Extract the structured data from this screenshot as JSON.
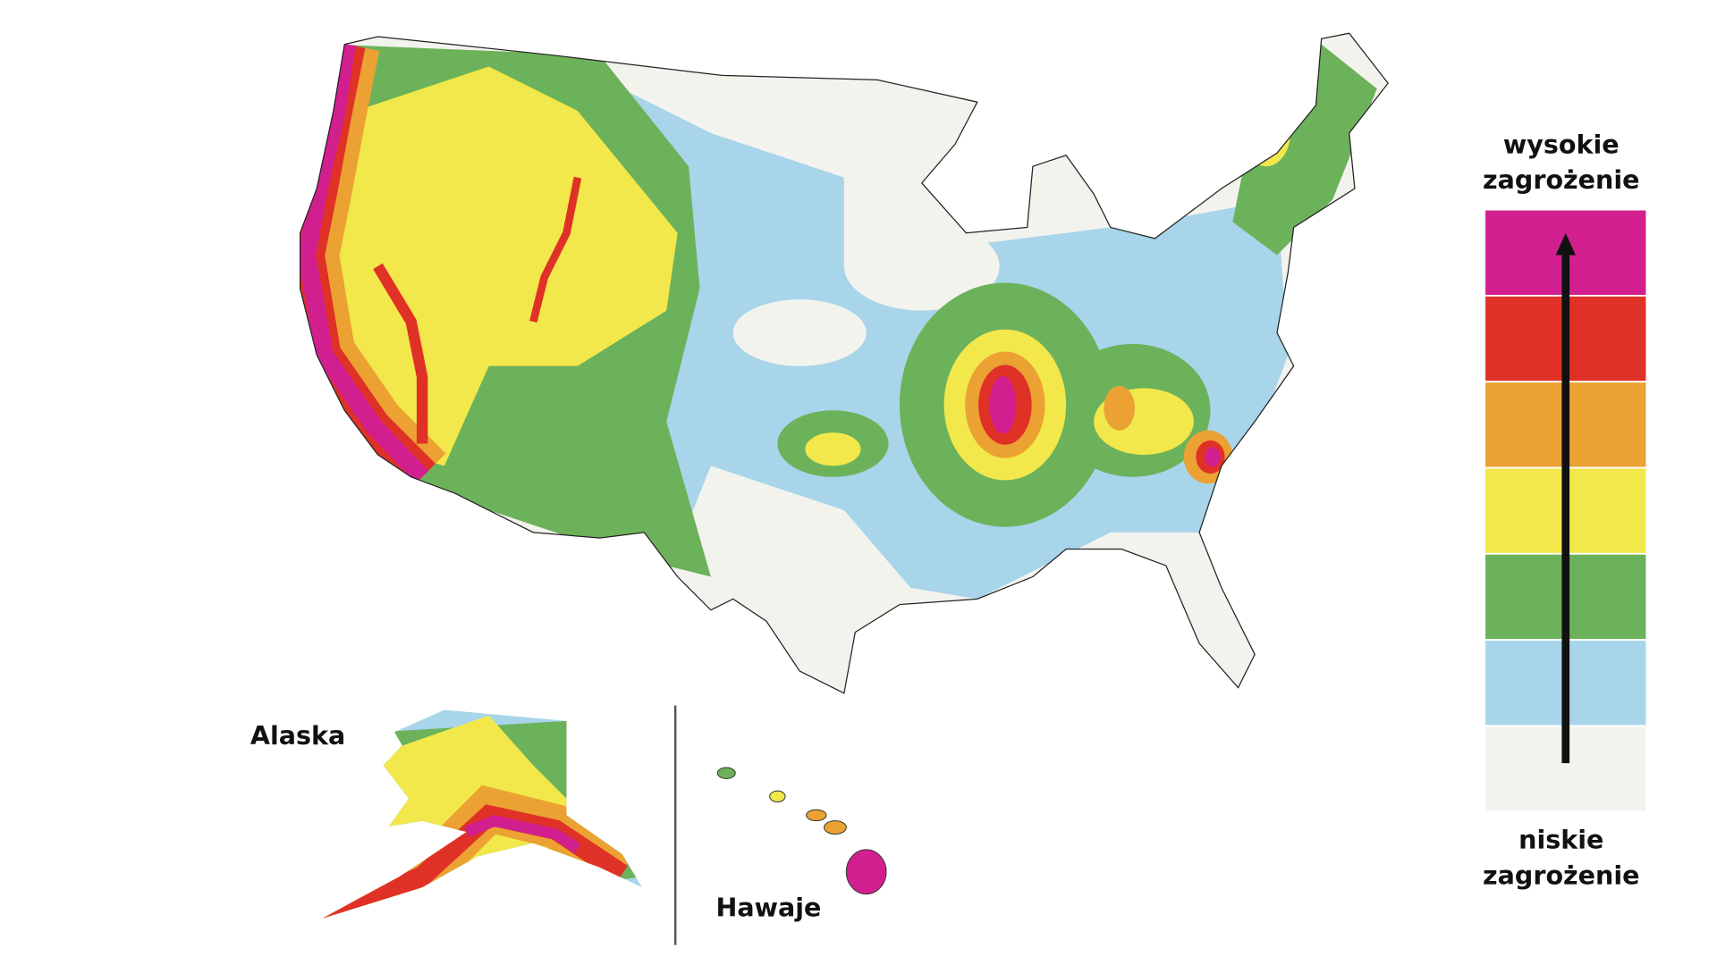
{
  "map": {
    "insets": {
      "alaska": "Alaska",
      "hawaii": "Hawaje"
    },
    "legend": {
      "high": [
        "wysokie",
        "zagrożenie"
      ],
      "low": [
        "niskie",
        "zagrożenie"
      ],
      "colors": [
        "#d21f8f",
        "#e03127",
        "#eba232",
        "#f2e84b",
        "#6cb25a",
        "#a8d5ea",
        "#f3f3ee"
      ]
    }
  }
}
